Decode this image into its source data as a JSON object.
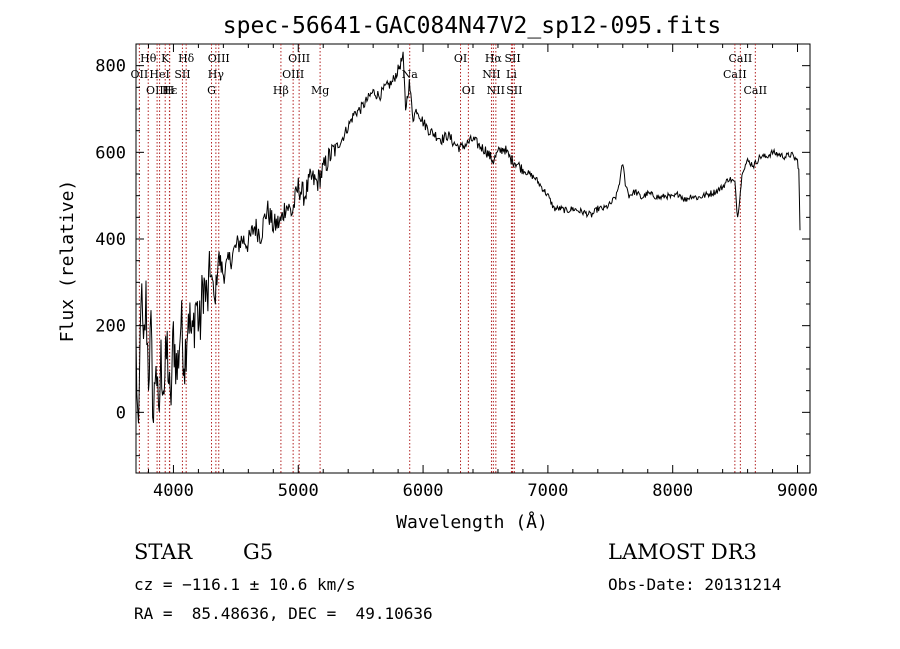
{
  "chart_data": {
    "type": "line",
    "title": "spec-56641-GAC084N47V2_sp12-095.fits",
    "xlabel": "Wavelength (Å)",
    "ylabel": "Flux (relative)",
    "xlim": [
      3700,
      9100
    ],
    "ylim": [
      -140,
      850
    ],
    "x_ticks": [
      4000,
      5000,
      6000,
      7000,
      8000,
      9000
    ],
    "y_ticks": [
      0,
      200,
      400,
      600,
      800
    ],
    "grid": false,
    "colors": {
      "spectrum": "#000000",
      "line_marker": "#b22222",
      "text": "#000000"
    },
    "series": [
      {
        "name": "flux",
        "x": [
          3700,
          3720,
          3740,
          3760,
          3780,
          3800,
          3820,
          3840,
          3860,
          3880,
          3900,
          3925,
          3950,
          3975,
          4000,
          4030,
          4060,
          4090,
          4120,
          4150,
          4180,
          4210,
          4240,
          4270,
          4300,
          4330,
          4360,
          4400,
          4450,
          4500,
          4550,
          4600,
          4650,
          4700,
          4750,
          4800,
          4861,
          4900,
          4950,
          5000,
          5050,
          5100,
          5150,
          5200,
          5250,
          5300,
          5350,
          5400,
          5450,
          5500,
          5550,
          5600,
          5650,
          5700,
          5750,
          5800,
          5840,
          5860,
          5890,
          5920,
          5950,
          6000,
          6050,
          6100,
          6150,
          6200,
          6250,
          6300,
          6350,
          6400,
          6450,
          6500,
          6563,
          6600,
          6650,
          6700,
          6750,
          6800,
          6850,
          6900,
          6950,
          7000,
          7050,
          7100,
          7150,
          7200,
          7250,
          7300,
          7350,
          7400,
          7450,
          7500,
          7550,
          7580,
          7600,
          7620,
          7650,
          7700,
          7750,
          7800,
          7850,
          7900,
          7950,
          8000,
          8050,
          8100,
          8150,
          8200,
          8250,
          8300,
          8350,
          8400,
          8450,
          8498,
          8520,
          8542,
          8560,
          8600,
          8650,
          8700,
          8750,
          8800,
          8850,
          8900,
          8950,
          9000,
          9010,
          9020
        ],
        "values": [
          160,
          -100,
          300,
          120,
          260,
          90,
          180,
          -20,
          140,
          -40,
          120,
          60,
          150,
          0,
          180,
          90,
          210,
          120,
          240,
          160,
          260,
          190,
          300,
          250,
          330,
          250,
          360,
          320,
          350,
          380,
          400,
          390,
          430,
          410,
          470,
          430,
          440,
          480,
          460,
          520,
          500,
          540,
          530,
          560,
          590,
          610,
          630,
          660,
          690,
          700,
          720,
          740,
          730,
          750,
          760,
          790,
          820,
          700,
          760,
          680,
          700,
          670,
          650,
          640,
          630,
          640,
          620,
          610,
          620,
          630,
          615,
          605,
          580,
          600,
          610,
          585,
          575,
          560,
          550,
          540,
          520,
          500,
          470,
          470,
          465,
          470,
          465,
          460,
          455,
          470,
          470,
          480,
          500,
          540,
          575,
          530,
          500,
          510,
          495,
          505,
          500,
          495,
          500,
          495,
          505,
          490,
          500,
          495,
          500,
          505,
          510,
          520,
          540,
          530,
          450,
          510,
          560,
          580,
          570,
          590,
          590,
          600,
          595,
          590,
          595,
          580,
          560,
          420
        ]
      }
    ],
    "line_labels": [
      {
        "id": "OII",
        "text": "OII",
        "wavelength": 3727,
        "row": 2
      },
      {
        "id": "Htheta",
        "text": "Hθ",
        "wavelength": 3798,
        "row": 1
      },
      {
        "id": "OIII_3868",
        "text": "OIII",
        "wavelength": 3869,
        "row": 3
      },
      {
        "id": "K",
        "text": "K",
        "wavelength": 3934,
        "row": 1
      },
      {
        "id": "HeI",
        "text": "HeI",
        "wavelength": 3889,
        "row": 2
      },
      {
        "id": "Hepsilon",
        "text": "Hε",
        "wavelength": 3970,
        "row": 3
      },
      {
        "id": "SII_4072",
        "text": "SII",
        "wavelength": 4072,
        "row": 2
      },
      {
        "id": "H",
        "text": "H",
        "wavelength": 3968,
        "row": 3
      },
      {
        "id": "Hdelta",
        "text": "Hδ",
        "wavelength": 4102,
        "row": 1
      },
      {
        "id": "OIII_4363",
        "text": "OIII",
        "wavelength": 4363,
        "row": 1
      },
      {
        "id": "Hgamma",
        "text": "Hγ",
        "wavelength": 4340,
        "row": 2
      },
      {
        "id": "G",
        "text": "G",
        "wavelength": 4305,
        "row": 3
      },
      {
        "id": "Hbeta",
        "text": "Hβ",
        "wavelength": 4861,
        "row": 3
      },
      {
        "id": "OIII_4959",
        "text": "OIII",
        "wavelength": 4959,
        "row": 2
      },
      {
        "id": "OIII_5007",
        "text": "OIII",
        "wavelength": 5007,
        "row": 1
      },
      {
        "id": "Mg",
        "text": "Mg",
        "wavelength": 5175,
        "row": 3
      },
      {
        "id": "Na",
        "text": "Na",
        "wavelength": 5893,
        "row": 2
      },
      {
        "id": "OI_6300",
        "text": "OI",
        "wavelength": 6300,
        "row": 1
      },
      {
        "id": "OI_6363",
        "text": "OI",
        "wavelength": 6363,
        "row": 3
      },
      {
        "id": "NII_6548",
        "text": "NII",
        "wavelength": 6548,
        "row": 2
      },
      {
        "id": "Halpha",
        "text": "Hα",
        "wavelength": 6563,
        "row": 1
      },
      {
        "id": "NII_6583",
        "text": "NII",
        "wavelength": 6583,
        "row": 3
      },
      {
        "id": "SII_6717",
        "text": "SII",
        "wavelength": 6717,
        "row": 1
      },
      {
        "id": "Li",
        "text": "Li",
        "wavelength": 6708,
        "row": 2
      },
      {
        "id": "SII_6731",
        "text": "SII",
        "wavelength": 6731,
        "row": 3
      },
      {
        "id": "CaII_8498",
        "text": "CaII",
        "wavelength": 8498,
        "row": 2
      },
      {
        "id": "CaII_8542",
        "text": "CaII",
        "wavelength": 8542,
        "row": 1
      },
      {
        "id": "CaII_8662",
        "text": "CaII",
        "wavelength": 8662,
        "row": 3
      }
    ]
  },
  "info": {
    "class": "STAR",
    "subclass": "G5",
    "survey": "LAMOST DR3",
    "velocity": "cz = −116.1 ± 10.6 km/s",
    "obs_date": "Obs-Date: 20131214",
    "coords": "RA =  85.48636, DEC =  49.10636"
  }
}
